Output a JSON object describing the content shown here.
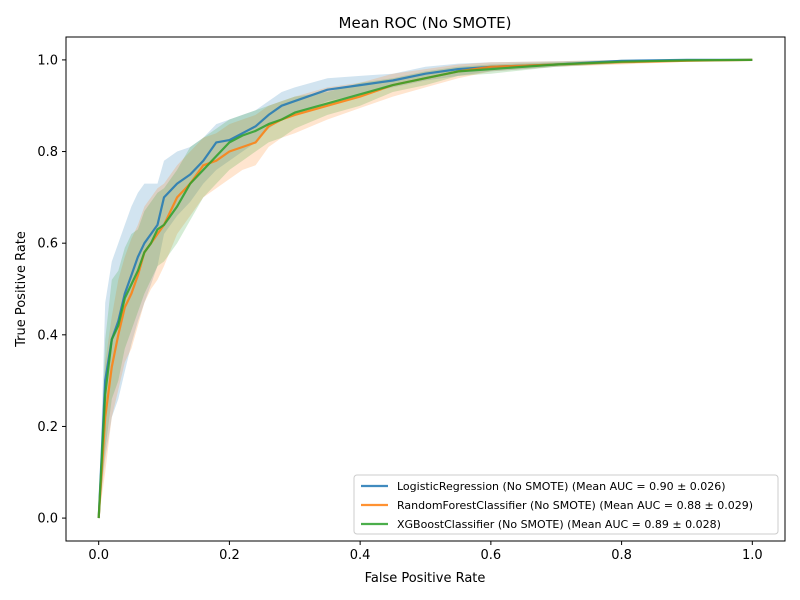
{
  "chart_data": {
    "type": "line",
    "title": "Mean ROC (No SMOTE)",
    "xlabel": "False Positive Rate",
    "ylabel": "True Positive Rate",
    "xlim": [
      -0.05,
      1.05
    ],
    "ylim": [
      -0.05,
      1.05
    ],
    "xticks": [
      0.0,
      0.2,
      0.4,
      0.6,
      0.8,
      1.0
    ],
    "yticks": [
      0.0,
      0.2,
      0.4,
      0.6,
      0.8,
      1.0
    ],
    "xtick_labels": [
      "0.0",
      "0.2",
      "0.4",
      "0.6",
      "0.8",
      "1.0"
    ],
    "ytick_labels": [
      "0.0",
      "0.2",
      "0.4",
      "0.6",
      "0.8",
      "1.0"
    ],
    "grid": false,
    "legend_position": "lower right",
    "x": [
      0.0,
      0.01,
      0.02,
      0.03,
      0.04,
      0.05,
      0.06,
      0.07,
      0.08,
      0.09,
      0.1,
      0.12,
      0.14,
      0.16,
      0.18,
      0.2,
      0.22,
      0.24,
      0.26,
      0.28,
      0.3,
      0.35,
      0.4,
      0.45,
      0.5,
      0.55,
      0.6,
      0.7,
      0.8,
      0.9,
      1.0
    ],
    "series": [
      {
        "name": "LogisticRegression (No SMOTE) (Mean AUC = 0.90 ± 0.026)",
        "color": "#1f77b4",
        "y": [
          0.0,
          0.3,
          0.39,
          0.43,
          0.49,
          0.53,
          0.57,
          0.6,
          0.62,
          0.64,
          0.7,
          0.73,
          0.75,
          0.78,
          0.82,
          0.825,
          0.84,
          0.855,
          0.88,
          0.9,
          0.91,
          0.935,
          0.945,
          0.955,
          0.97,
          0.98,
          0.985,
          0.99,
          0.998,
          1.0,
          1.0
        ],
        "lower": [
          0.0,
          0.13,
          0.22,
          0.26,
          0.32,
          0.38,
          0.43,
          0.47,
          0.51,
          0.55,
          0.62,
          0.66,
          0.69,
          0.73,
          0.76,
          0.78,
          0.8,
          0.82,
          0.85,
          0.87,
          0.88,
          0.91,
          0.925,
          0.94,
          0.955,
          0.965,
          0.975,
          0.985,
          0.993,
          0.998,
          1.0
        ],
        "upper": [
          0.0,
          0.47,
          0.56,
          0.6,
          0.64,
          0.68,
          0.71,
          0.73,
          0.73,
          0.73,
          0.78,
          0.8,
          0.81,
          0.83,
          0.86,
          0.87,
          0.88,
          0.89,
          0.91,
          0.93,
          0.94,
          0.96,
          0.965,
          0.97,
          0.985,
          0.992,
          0.995,
          0.997,
          1.0,
          1.0,
          1.0
        ]
      },
      {
        "name": "RandomForestClassifier (No SMOTE) (Mean AUC = 0.88 ± 0.029)",
        "color": "#ff7f0e",
        "y": [
          0.0,
          0.22,
          0.33,
          0.4,
          0.46,
          0.49,
          0.53,
          0.58,
          0.6,
          0.62,
          0.64,
          0.7,
          0.73,
          0.77,
          0.78,
          0.8,
          0.81,
          0.82,
          0.855,
          0.87,
          0.88,
          0.9,
          0.92,
          0.945,
          0.96,
          0.975,
          0.985,
          0.99,
          0.995,
          0.998,
          1.0
        ],
        "lower": [
          0.0,
          0.1,
          0.22,
          0.28,
          0.34,
          0.37,
          0.42,
          0.47,
          0.5,
          0.52,
          0.55,
          0.62,
          0.66,
          0.7,
          0.72,
          0.74,
          0.76,
          0.77,
          0.81,
          0.83,
          0.84,
          0.87,
          0.895,
          0.92,
          0.94,
          0.96,
          0.975,
          0.985,
          0.99,
          0.996,
          1.0
        ],
        "upper": [
          0.0,
          0.34,
          0.44,
          0.52,
          0.57,
          0.61,
          0.64,
          0.68,
          0.7,
          0.72,
          0.73,
          0.77,
          0.8,
          0.83,
          0.84,
          0.86,
          0.87,
          0.88,
          0.9,
          0.91,
          0.92,
          0.94,
          0.95,
          0.97,
          0.98,
          0.99,
          0.995,
          0.997,
          1.0,
          1.0,
          1.0
        ]
      },
      {
        "name": "XGBoostClassifier (No SMOTE) (Mean AUC = 0.89 ± 0.028)",
        "color": "#2ca02c",
        "y": [
          0.0,
          0.27,
          0.39,
          0.42,
          0.48,
          0.51,
          0.54,
          0.58,
          0.6,
          0.63,
          0.64,
          0.68,
          0.73,
          0.76,
          0.79,
          0.82,
          0.835,
          0.845,
          0.86,
          0.87,
          0.885,
          0.905,
          0.925,
          0.945,
          0.96,
          0.975,
          0.98,
          0.99,
          0.996,
          0.999,
          1.0
        ],
        "lower": [
          0.0,
          0.15,
          0.26,
          0.3,
          0.37,
          0.41,
          0.45,
          0.49,
          0.52,
          0.55,
          0.56,
          0.6,
          0.65,
          0.7,
          0.73,
          0.76,
          0.78,
          0.8,
          0.82,
          0.83,
          0.85,
          0.88,
          0.9,
          0.93,
          0.945,
          0.965,
          0.97,
          0.985,
          0.992,
          0.997,
          1.0
        ],
        "upper": [
          0.0,
          0.39,
          0.52,
          0.54,
          0.59,
          0.62,
          0.63,
          0.67,
          0.69,
          0.71,
          0.72,
          0.76,
          0.81,
          0.83,
          0.85,
          0.87,
          0.88,
          0.89,
          0.9,
          0.91,
          0.92,
          0.93,
          0.95,
          0.96,
          0.975,
          0.985,
          0.99,
          0.995,
          1.0,
          1.0,
          1.0
        ]
      }
    ]
  }
}
